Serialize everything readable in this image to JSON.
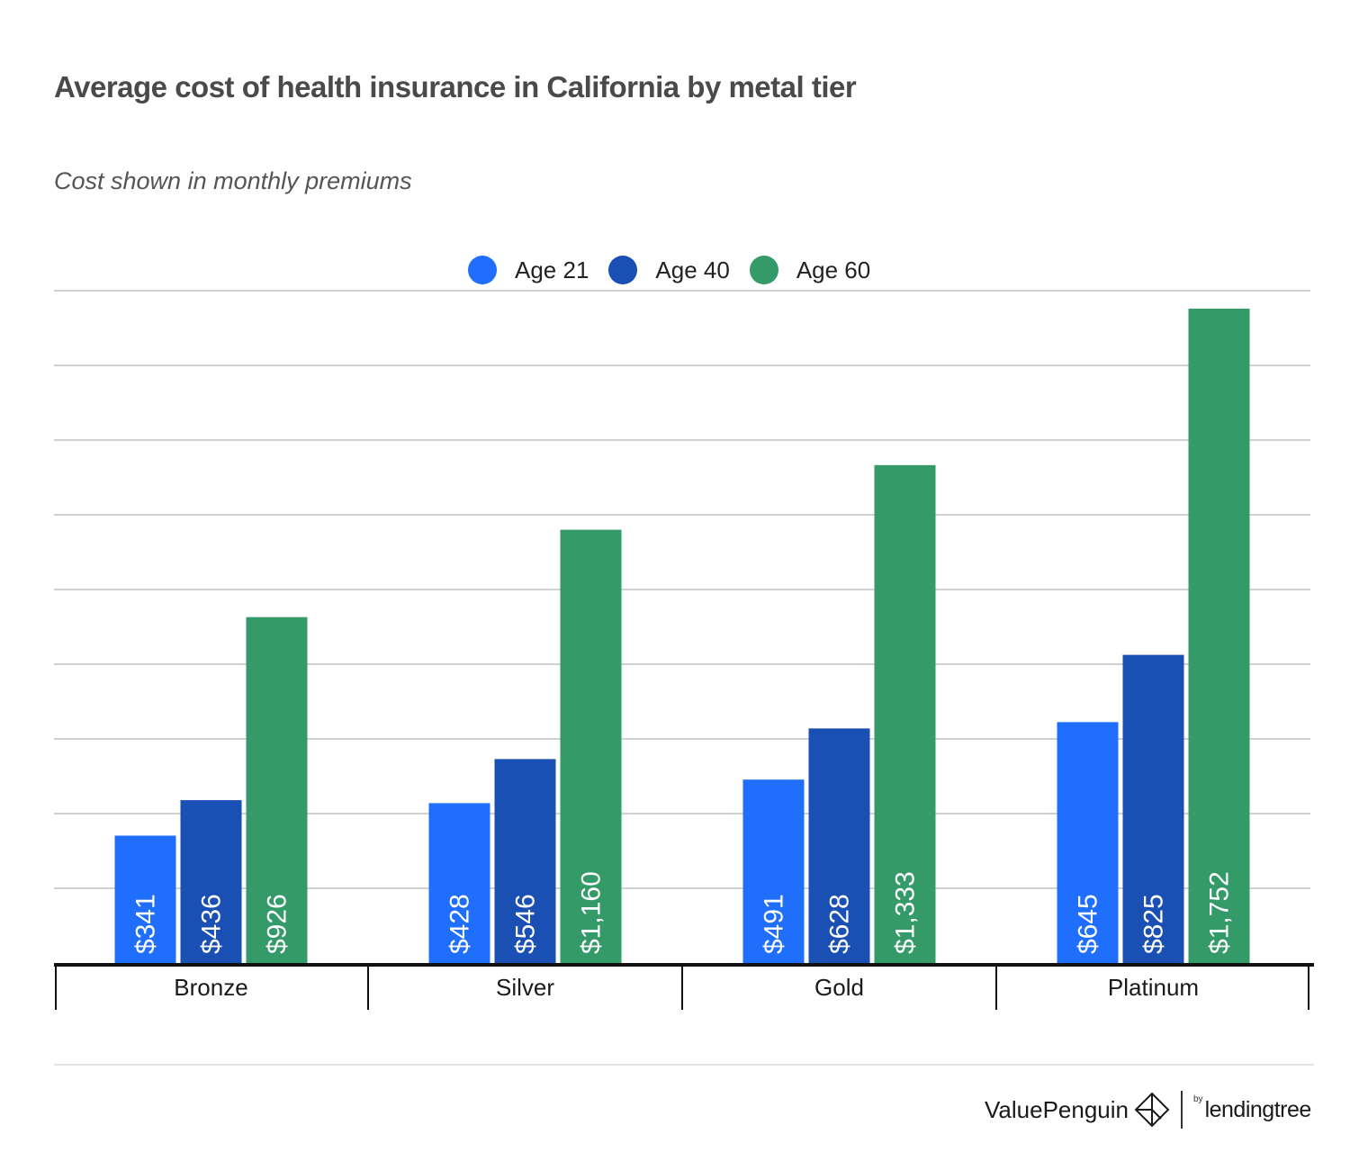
{
  "chart_data": {
    "type": "bar",
    "title": "Average cost of health insurance in California by metal tier",
    "subtitle": "Cost shown in monthly premiums",
    "categories": [
      "Bronze",
      "Silver",
      "Gold",
      "Platinum"
    ],
    "series": [
      {
        "name": "Age 21",
        "color": "#1f6ffc",
        "values": [
          341,
          428,
          491,
          645
        ],
        "labels": [
          "$341",
          "$428",
          "$491",
          "$645"
        ]
      },
      {
        "name": "Age 40",
        "color": "#1a4fb3",
        "values": [
          436,
          546,
          628,
          825
        ],
        "labels": [
          "$436",
          "$546",
          "$628",
          "$825"
        ]
      },
      {
        "name": "Age 60",
        "color": "#339a68",
        "values": [
          926,
          1160,
          1333,
          1752
        ],
        "labels": [
          "$926",
          "$1,160",
          "$1,333",
          "$1,752"
        ]
      }
    ],
    "ylim": [
      0,
      1800
    ],
    "gridlines": 9,
    "legend_position": "top-center",
    "y_tick_labels_shown": false
  },
  "branding": {
    "value_penguin": "ValuePenguin",
    "by": "by",
    "lending_tree": "lendingtree",
    "logo_icon": "value-penguin-diamond-icon"
  }
}
